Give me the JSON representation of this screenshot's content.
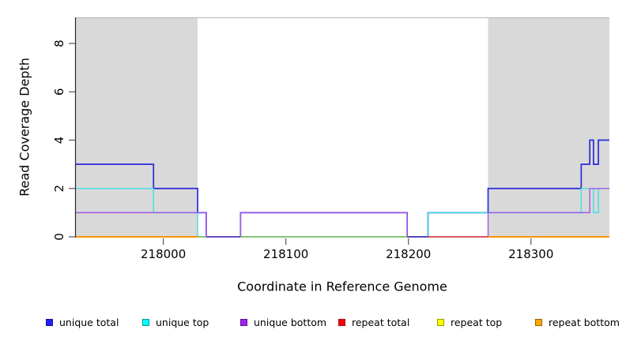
{
  "chart_data": {
    "type": "step-line",
    "title": "",
    "xlabel": "Coordinate in Reference Genome",
    "ylabel": "Read Coverage Depth",
    "x_ticks": [
      218000,
      218100,
      218200,
      218300
    ],
    "y_ticks": [
      0,
      2,
      4,
      6,
      8
    ],
    "xlim": [
      217928,
      218364
    ],
    "ylim": [
      0,
      9.08
    ],
    "grid": false,
    "shaded_regions": [
      {
        "x0": 217928,
        "x1": 218028,
        "color": "#d9d9d9"
      },
      {
        "x0": 218265,
        "x1": 218364,
        "color": "#d9d9d9"
      }
    ],
    "series": [
      {
        "name": "unique total",
        "color": "#2a2ada",
        "width": 1.7,
        "steps": [
          [
            217928,
            3
          ],
          [
            217992,
            2
          ],
          [
            218028,
            1
          ],
          [
            218035,
            0
          ],
          [
            218063,
            1
          ],
          [
            218199,
            0
          ],
          [
            218216,
            1
          ],
          [
            218265,
            2
          ],
          [
            218341,
            3
          ],
          [
            218348,
            4
          ],
          [
            218351,
            3
          ],
          [
            218355,
            4
          ],
          [
            218364,
            4
          ]
        ]
      },
      {
        "name": "unique top",
        "color": "#3fe0e0",
        "width": 1.4,
        "steps": [
          [
            217928,
            2
          ],
          [
            217992,
            1
          ],
          [
            218028,
            0
          ],
          [
            218216,
            1
          ],
          [
            218341,
            2
          ],
          [
            218351,
            1
          ],
          [
            218355,
            2
          ],
          [
            218364,
            2
          ]
        ]
      },
      {
        "name": "unique bottom",
        "color": "#a059e8",
        "width": 1.4,
        "steps": [
          [
            217928,
            1
          ],
          [
            218035,
            0
          ],
          [
            218063,
            1
          ],
          [
            218199,
            0
          ],
          [
            218265,
            1
          ],
          [
            218348,
            2
          ],
          [
            218364,
            2
          ]
        ]
      },
      {
        "name": "repeat total",
        "color": "#ff0000",
        "width": 1.2,
        "steps": [
          [
            217928,
            0
          ],
          [
            218364,
            0
          ]
        ]
      },
      {
        "name": "repeat top",
        "color": "#ffff00",
        "width": 1.2,
        "steps": [
          [
            217928,
            0
          ],
          [
            218364,
            0
          ]
        ]
      },
      {
        "name": "repeat bottom",
        "color": "#ff9100",
        "width": 1.6,
        "steps": [
          [
            217928,
            0
          ],
          [
            218364,
            0
          ]
        ]
      }
    ],
    "baseline_segments": [
      {
        "x0": 217928,
        "x1": 218028,
        "color": "#ff9100"
      },
      {
        "x0": 218028,
        "x1": 218035,
        "color": "#7cc87c"
      },
      {
        "x0": 218035,
        "x1": 218063,
        "color": "#5a44d8"
      },
      {
        "x0": 218063,
        "x1": 218199,
        "color": "#7cc87c"
      },
      {
        "x0": 218199,
        "x1": 218216,
        "color": "#4a3ad0"
      },
      {
        "x0": 218216,
        "x1": 218265,
        "color": "#d84a68"
      },
      {
        "x0": 218265,
        "x1": 218364,
        "color": "#ff9100"
      }
    ],
    "legend": {
      "position": "bottom",
      "items": [
        {
          "label": "unique total",
          "fill": "#1f1fff",
          "border": "#16168c"
        },
        {
          "label": "unique top",
          "fill": "#00ffff",
          "border": "#0d9a9a"
        },
        {
          "label": "unique bottom",
          "fill": "#a020f0",
          "border": "#5f1390"
        },
        {
          "label": "repeat total",
          "fill": "#ff0000",
          "border": "#991111"
        },
        {
          "label": "repeat top",
          "fill": "#ffff00",
          "border": "#9a9a00"
        },
        {
          "label": "repeat bottom",
          "fill": "#ffa500",
          "border": "#9a6400"
        }
      ]
    }
  },
  "axes": {
    "tick_color": "#555555",
    "axis_line_color": "#2b2b2b",
    "plot_border_color": "#b5b5b5",
    "tick_label_color": "#000000"
  }
}
